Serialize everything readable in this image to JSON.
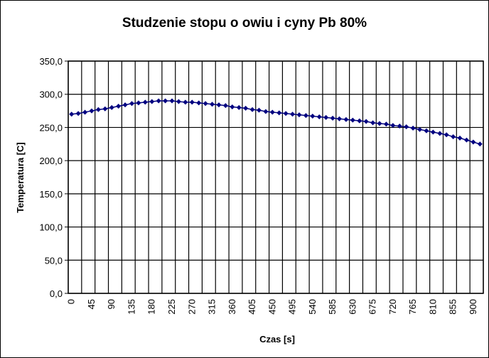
{
  "chart_data": {
    "type": "line",
    "title": "Studzenie stopu o owiu i cyny Pb 80%",
    "x_label": "Czas [s]",
    "y_label": "Temperatura [C]",
    "categories": [
      "0",
      null,
      null,
      "45",
      null,
      null,
      "90",
      null,
      null,
      "135",
      null,
      null,
      "180",
      null,
      null,
      "225",
      null,
      null,
      "270",
      null,
      null,
      "315",
      null,
      null,
      "360",
      null,
      null,
      "405",
      null,
      null,
      "450",
      null,
      null,
      "495",
      null,
      null,
      "540",
      null,
      null,
      "585",
      null,
      null,
      "630",
      null,
      null,
      "675",
      null,
      null,
      "720",
      null,
      null,
      "765",
      null,
      null,
      "810",
      null,
      null,
      "855",
      null,
      null,
      "900",
      null
    ],
    "series": [
      {
        "name": "Temperatura",
        "color": "#000080",
        "values": [
          270,
          271,
          273,
          275,
          277,
          278,
          280,
          282,
          284,
          286,
          287,
          288,
          289,
          290,
          290,
          290,
          289,
          288,
          288,
          287,
          286,
          285,
          284,
          283,
          281,
          280,
          279,
          277,
          276,
          274,
          273,
          272,
          271,
          270,
          269,
          268,
          267,
          266,
          265,
          264,
          263,
          262,
          261,
          260,
          259,
          257,
          256,
          255,
          253,
          252,
          251,
          249,
          247,
          245,
          243,
          241,
          239,
          236,
          234,
          231,
          228,
          225
        ]
      }
    ],
    "ylim": [
      0,
      350
    ],
    "yticks": [
      {
        "value": 0,
        "label": "0,0"
      },
      {
        "value": 50,
        "label": "50,0"
      },
      {
        "value": 100,
        "label": "100,0"
      },
      {
        "value": 150,
        "label": "150,0"
      },
      {
        "value": 200,
        "label": "200,0"
      },
      {
        "value": 250,
        "label": "250,0"
      },
      {
        "value": 300,
        "label": "300,0"
      },
      {
        "value": 350,
        "label": "350,0"
      }
    ],
    "grid": true
  }
}
